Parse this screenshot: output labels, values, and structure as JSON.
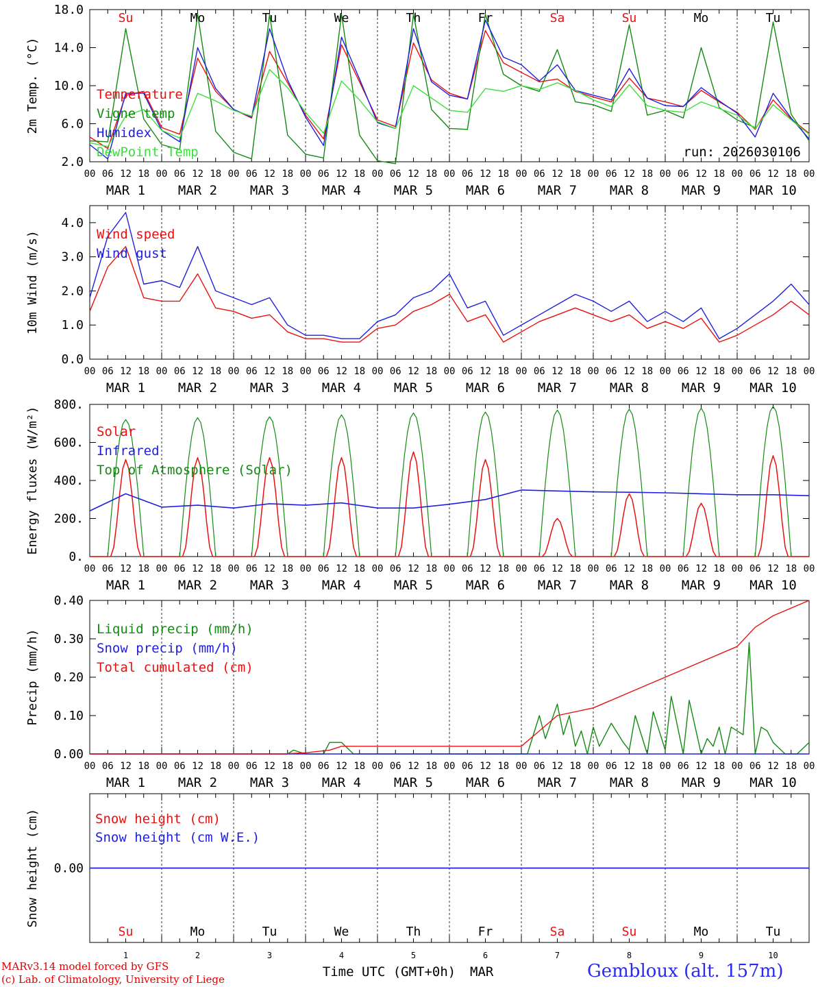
{
  "run_label": "run: 2026030106",
  "day_names": [
    "Su",
    "Mo",
    "Tu",
    "We",
    "Th",
    "Fr",
    "Sa",
    "Su",
    "Mo",
    "Tu"
  ],
  "weekend_days": [
    0,
    6,
    7
  ],
  "hour_labels": [
    "00",
    "06",
    "12",
    "18"
  ],
  "final_hour_label": "00",
  "date_labels": [
    "MAR  1",
    "MAR  2",
    "MAR  3",
    "MAR  4",
    "MAR  5",
    "MAR  6",
    "MAR  7",
    "MAR  8",
    "MAR  9",
    "MAR 10"
  ],
  "day_numbers": [
    "1",
    "2",
    "3",
    "4",
    "5",
    "6",
    "7",
    "8",
    "9",
    "10"
  ],
  "xlabel": "Time UTC (GMT+0h)",
  "xlabel_month": "MAR",
  "credit_line1": "MARv3.14 model forced by GFS",
  "credit_line2": "(c) Lab. of Climatology, University of Liege",
  "station": "Gembloux (alt. 157m)",
  "colors": {
    "red": "#e81010",
    "green": "#128a12",
    "blue": "#1e1ee0",
    "lightgreen": "#3ce03c",
    "day_red": "#e81010"
  },
  "chart_data": [
    {
      "type": "line",
      "id": "temperature",
      "ylabel": "2m Temp. (°C)",
      "ylim": [
        2.0,
        18.0
      ],
      "yticks": [
        2.0,
        6.0,
        10.0,
        14.0,
        18.0
      ],
      "ytick_labels": [
        "2.0",
        "6.0",
        "10.0",
        "14.0",
        "18.0"
      ],
      "x_hours": [
        0,
        6,
        12,
        18,
        24,
        30,
        36,
        42,
        48,
        54,
        60,
        66,
        72,
        78,
        84,
        90,
        96,
        102,
        108,
        114,
        120,
        126,
        132,
        138,
        144,
        150,
        156,
        162,
        168,
        174,
        180,
        186,
        192,
        198,
        204,
        210,
        216,
        222,
        228,
        234,
        240
      ],
      "series": [
        {
          "name": "Temperature",
          "color": "red",
          "values": [
            4.6,
            3.4,
            9.0,
            9.4,
            5.6,
            4.9,
            12.9,
            9.4,
            7.5,
            6.6,
            13.6,
            10.3,
            6.9,
            4.4,
            14.3,
            10.4,
            6.4,
            5.7,
            14.5,
            10.6,
            9.2,
            8.6,
            15.8,
            12.4,
            11.4,
            10.4,
            10.7,
            9.4,
            8.8,
            8.3,
            10.8,
            8.7,
            8.3,
            7.8,
            9.5,
            8.3,
            7.2,
            5.4,
            8.5,
            6.5,
            5.0
          ]
        },
        {
          "name": "Vigne temp",
          "color": "green",
          "values": [
            4.2,
            4.1,
            16.0,
            6.5,
            3.8,
            3.3,
            17.5,
            5.2,
            3.0,
            2.3,
            17.5,
            4.8,
            2.8,
            2.4,
            17.5,
            4.8,
            2.1,
            1.8,
            17.5,
            7.5,
            5.5,
            5.4,
            17.5,
            11.2,
            10.0,
            9.4,
            13.8,
            8.3,
            8.0,
            7.3,
            16.4,
            6.9,
            7.4,
            6.6,
            14.0,
            7.7,
            6.4,
            5.6,
            16.7,
            7.0,
            4.2
          ]
        },
        {
          "name": "Humidex",
          "color": "blue",
          "values": [
            3.8,
            2.3,
            9.2,
            9.2,
            5.3,
            4.1,
            14.0,
            9.7,
            7.5,
            6.7,
            16.0,
            10.6,
            6.7,
            3.7,
            15.1,
            10.7,
            6.1,
            5.5,
            16.0,
            10.4,
            9.0,
            8.6,
            16.9,
            13.0,
            12.2,
            10.5,
            12.2,
            9.5,
            9.0,
            8.5,
            11.8,
            8.7,
            7.9,
            7.8,
            9.8,
            8.4,
            7.1,
            4.6,
            9.2,
            6.6,
            4.4
          ]
        },
        {
          "name": "DewPoint Temp",
          "color": "lightgreen",
          "values": [
            4.0,
            3.6,
            6.8,
            7.5,
            5.3,
            4.5,
            9.2,
            8.4,
            7.4,
            6.8,
            11.7,
            9.8,
            7.2,
            5.0,
            10.5,
            8.5,
            6.2,
            5.5,
            10.0,
            8.7,
            7.4,
            7.2,
            9.7,
            9.4,
            10.0,
            9.6,
            10.3,
            9.5,
            8.5,
            7.8,
            10.1,
            7.9,
            7.4,
            7.2,
            8.3,
            7.6,
            6.9,
            5.5,
            8.0,
            6.4,
            4.9
          ]
        }
      ]
    },
    {
      "type": "line",
      "id": "wind",
      "ylabel": "10m Wind (m/s)",
      "ylim": [
        0.0,
        4.5
      ],
      "yticks": [
        0.0,
        1.0,
        2.0,
        3.0,
        4.0
      ],
      "ytick_labels": [
        "0.0",
        "1.0",
        "2.0",
        "3.0",
        "4.0"
      ],
      "x_hours": [
        0,
        6,
        12,
        18,
        24,
        30,
        36,
        42,
        48,
        54,
        60,
        66,
        72,
        78,
        84,
        90,
        96,
        102,
        108,
        114,
        120,
        126,
        132,
        138,
        144,
        150,
        156,
        162,
        168,
        174,
        180,
        186,
        192,
        198,
        204,
        210,
        216,
        222,
        228,
        234,
        240
      ],
      "series": [
        {
          "name": "Wind speed",
          "color": "red",
          "values": [
            1.4,
            2.7,
            3.3,
            1.8,
            1.7,
            1.7,
            2.5,
            1.5,
            1.4,
            1.2,
            1.3,
            0.8,
            0.6,
            0.6,
            0.5,
            0.5,
            0.9,
            1.0,
            1.4,
            1.6,
            1.9,
            1.1,
            1.3,
            0.5,
            0.8,
            1.1,
            1.3,
            1.5,
            1.3,
            1.1,
            1.3,
            0.9,
            1.1,
            0.9,
            1.2,
            0.5,
            0.7,
            1.0,
            1.3,
            1.7,
            1.3
          ]
        },
        {
          "name": "Wind gust",
          "color": "blue",
          "values": [
            1.8,
            3.6,
            4.3,
            2.2,
            2.3,
            2.1,
            3.3,
            2.0,
            1.8,
            1.6,
            1.8,
            1.0,
            0.7,
            0.7,
            0.6,
            0.6,
            1.1,
            1.3,
            1.8,
            2.0,
            2.5,
            1.5,
            1.7,
            0.7,
            1.0,
            1.3,
            1.6,
            1.9,
            1.7,
            1.4,
            1.7,
            1.1,
            1.4,
            1.1,
            1.5,
            0.6,
            0.9,
            1.3,
            1.7,
            2.2,
            1.6
          ]
        }
      ]
    },
    {
      "type": "line",
      "id": "energy",
      "ylabel": "Energy fluxes (W/m²)",
      "ylim": [
        0,
        800
      ],
      "yticks": [
        0,
        200,
        400,
        600,
        800
      ],
      "ytick_labels": [
        "0.",
        "200.",
        "400.",
        "600.",
        "800."
      ],
      "daily_peaks": {
        "solar": [
          510,
          520,
          520,
          520,
          550,
          510,
          200,
          330,
          280,
          530
        ],
        "toa": [
          720,
          730,
          735,
          745,
          755,
          760,
          770,
          775,
          780,
          790
        ]
      },
      "infrared_hours": [
        0,
        12,
        24,
        36,
        48,
        60,
        72,
        84,
        96,
        108,
        120,
        132,
        144,
        156,
        168,
        180,
        192,
        204,
        216,
        228,
        240
      ],
      "series": [
        {
          "name": "Solar",
          "color": "red"
        },
        {
          "name": "Infrared",
          "color": "blue",
          "values": [
            240,
            330,
            260,
            270,
            255,
            278,
            270,
            282,
            255,
            255,
            275,
            300,
            350,
            345,
            340,
            338,
            335,
            330,
            325,
            325,
            320
          ]
        },
        {
          "name": "Top of Atmosphere (Solar)",
          "color": "green"
        }
      ]
    },
    {
      "type": "line",
      "id": "precip",
      "ylabel": "Precip (mm/h)",
      "ylim": [
        0.0,
        0.4
      ],
      "yticks": [
        0.0,
        0.1,
        0.2,
        0.3,
        0.4
      ],
      "ytick_labels": [
        "0.00",
        "0.10",
        "0.20",
        "0.30",
        "0.40"
      ],
      "series": [
        {
          "name": "Liquid precip (mm/h)",
          "color": "green",
          "x_hours": [
            0,
            66,
            68,
            72,
            78,
            80,
            84,
            88,
            90,
            96,
            146,
            150,
            152,
            156,
            158,
            160,
            162,
            164,
            166,
            168,
            170,
            174,
            178,
            180,
            182,
            186,
            188,
            192,
            194,
            198,
            200,
            204,
            206,
            208,
            210,
            212,
            214,
            218,
            220,
            222,
            224,
            226,
            228,
            232,
            236,
            240
          ],
          "values": [
            0,
            0,
            0.01,
            0,
            0,
            0.03,
            0.03,
            0,
            0,
            0,
            0,
            0.1,
            0.04,
            0.13,
            0.05,
            0.1,
            0.02,
            0.06,
            0,
            0.07,
            0.02,
            0.08,
            0.03,
            0.01,
            0.1,
            0,
            0.11,
            0.01,
            0.15,
            0,
            0.14,
            0,
            0.04,
            0.02,
            0.07,
            0,
            0.07,
            0.05,
            0.29,
            0,
            0.07,
            0.06,
            0.03,
            0,
            0,
            0.03
          ]
        },
        {
          "name": "Snow precip (mm/h)",
          "color": "blue",
          "x_hours": [
            0,
            240
          ],
          "values": [
            0,
            0
          ]
        },
        {
          "name": "Total cumulated (cm)",
          "color": "red",
          "x_hours": [
            0,
            64,
            72,
            80,
            84,
            96,
            144,
            150,
            156,
            168,
            180,
            192,
            204,
            216,
            222,
            228,
            240
          ],
          "values": [
            0,
            0,
            0.003,
            0.01,
            0.02,
            0.02,
            0.02,
            0.06,
            0.1,
            0.12,
            0.16,
            0.2,
            0.24,
            0.28,
            0.33,
            0.36,
            0.4
          ]
        }
      ]
    },
    {
      "type": "line",
      "id": "snow",
      "ylabel": "Snow height (cm)",
      "ylim": [
        -1,
        1
      ],
      "yticks": [
        0.0
      ],
      "ytick_labels": [
        "0.00"
      ],
      "series": [
        {
          "name": "Snow height (cm)",
          "color": "red",
          "x_hours": [
            0,
            240
          ],
          "values": [
            0,
            0
          ]
        },
        {
          "name": "Snow height (cm W.E.)",
          "color": "blue",
          "x_hours": [
            0,
            240
          ],
          "values": [
            0,
            0
          ]
        }
      ]
    }
  ]
}
